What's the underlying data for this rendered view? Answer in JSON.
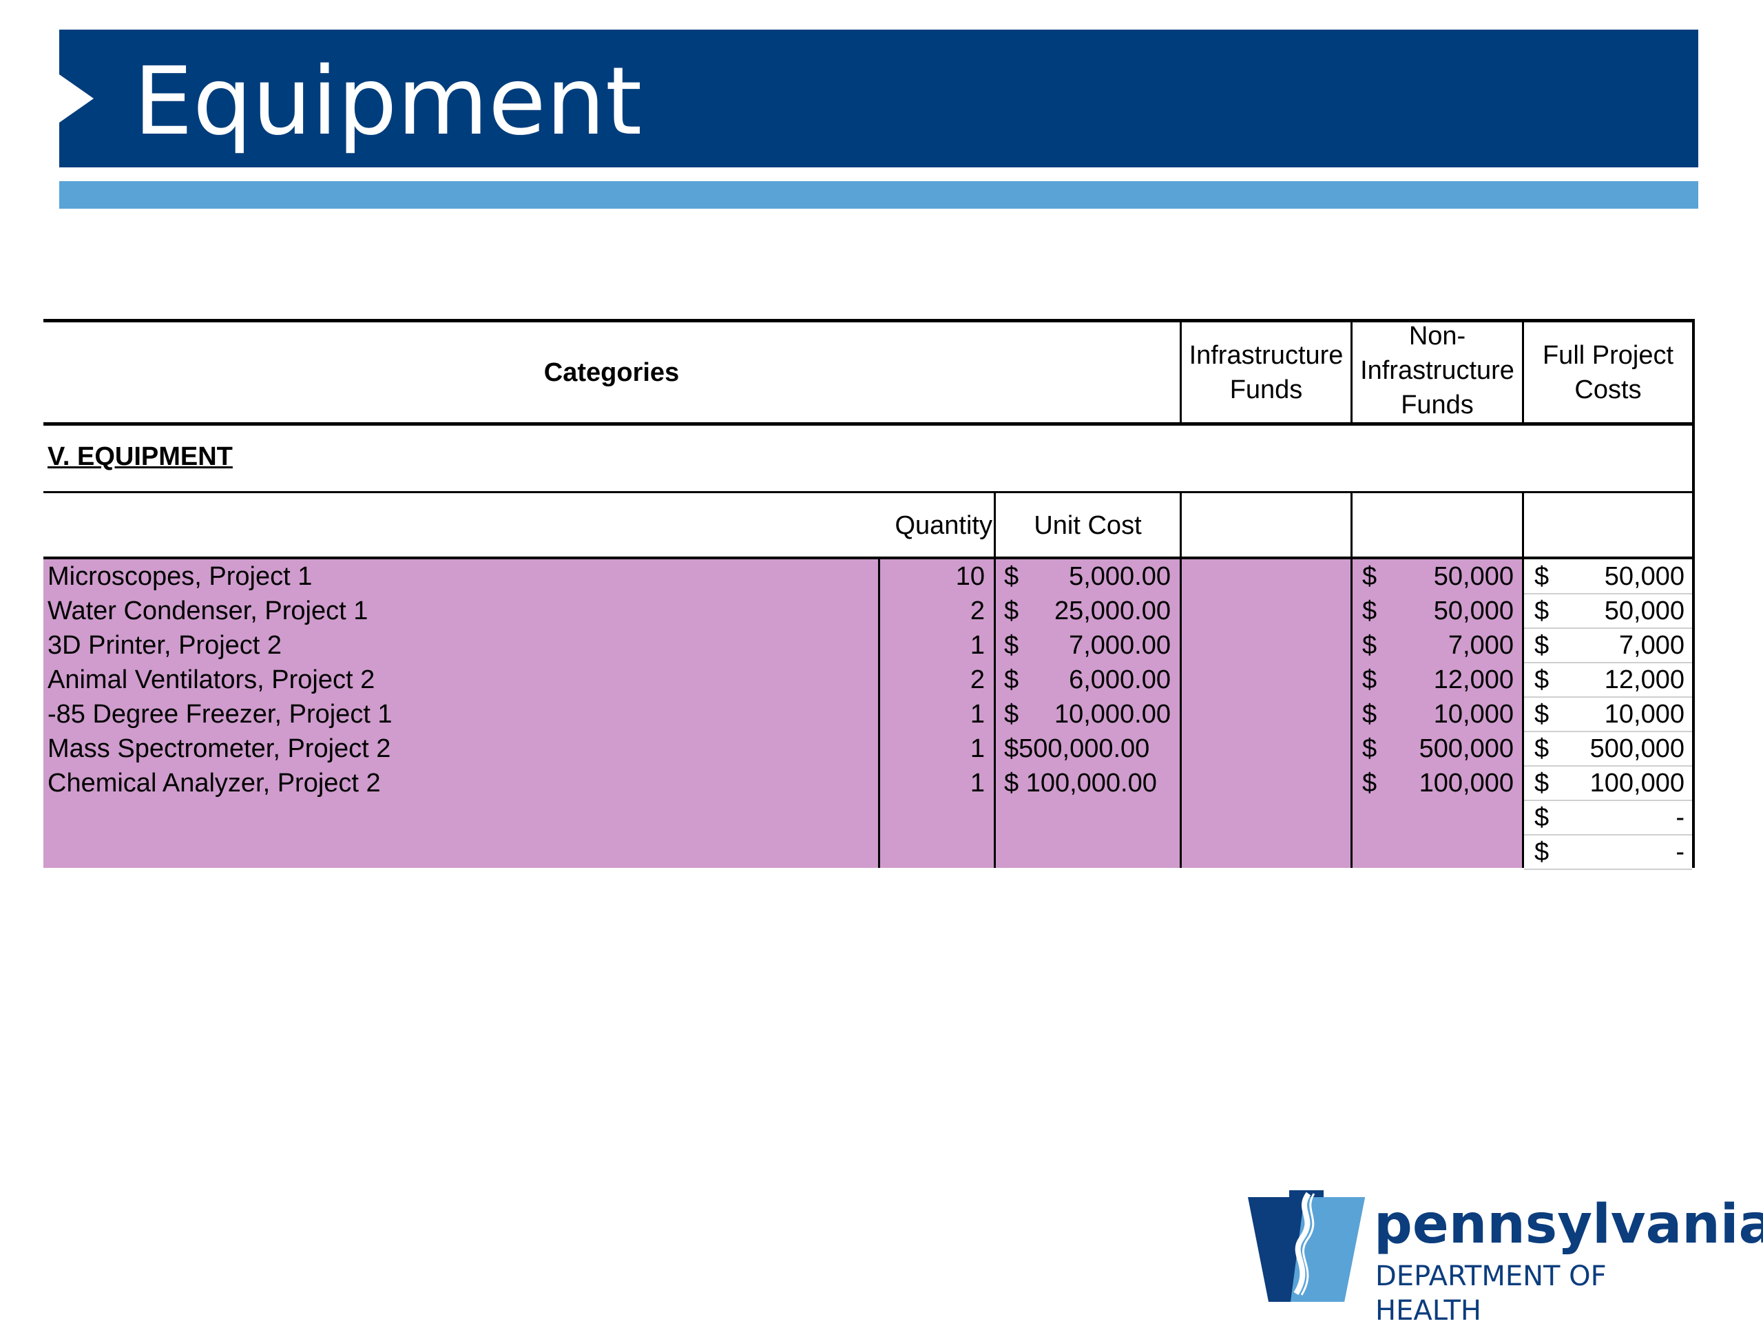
{
  "slide": {
    "title": "Equipment"
  },
  "table": {
    "header": {
      "categories": "Categories",
      "infra": "Infrastructure Funds",
      "noninfra": "Non-Infrastructure Funds",
      "full": "Full Project Costs"
    },
    "section_label": "V. EQUIPMENT",
    "sub_header": {
      "quantity": "Quantity",
      "unit_cost": "Unit Cost"
    },
    "rows": [
      {
        "item": "Microscopes, Project 1",
        "qty": "10",
        "unit_cost": "5,000.00",
        "infra": "",
        "noninfra": "50,000",
        "full": "50,000"
      },
      {
        "item": "Water Condenser, Project 1",
        "qty": "2",
        "unit_cost": "25,000.00",
        "infra": "",
        "noninfra": "50,000",
        "full": "50,000"
      },
      {
        "item": "3D Printer, Project 2",
        "qty": "1",
        "unit_cost": "7,000.00",
        "infra": "",
        "noninfra": "7,000",
        "full": "7,000"
      },
      {
        "item": "Animal Ventilators, Project 2",
        "qty": "2",
        "unit_cost": "6,000.00",
        "infra": "",
        "noninfra": "12,000",
        "full": "12,000"
      },
      {
        "item": "-85 Degree Freezer, Project 1",
        "qty": "1",
        "unit_cost": "10,000.00",
        "infra": "",
        "noninfra": "10,000",
        "full": "10,000"
      },
      {
        "item": "Mass Spectrometer, Project 2",
        "qty": "1",
        "unit_cost": "$500,000.00",
        "infra": "",
        "noninfra": "500,000",
        "full": "500,000"
      },
      {
        "item": "Chemical Analyzer, Project 2",
        "qty": "1",
        "unit_cost": "$ 100,000.00",
        "infra": "",
        "noninfra": "100,000",
        "full": "100,000"
      },
      {
        "item": "",
        "qty": "",
        "unit_cost": "",
        "infra": "",
        "noninfra": "",
        "full": "-"
      },
      {
        "item": "",
        "qty": "",
        "unit_cost": "",
        "infra": "",
        "noninfra": "",
        "full": "-"
      }
    ],
    "currency_symbol": "$"
  },
  "logo": {
    "wordmark": "pennsylvania",
    "subtitle": "DEPARTMENT OF HEALTH"
  },
  "colors": {
    "banner": "#003d7c",
    "stripe": "#5aa3d6",
    "highlight": "#cf9ccd",
    "logo_text": "#0c3d7d"
  }
}
